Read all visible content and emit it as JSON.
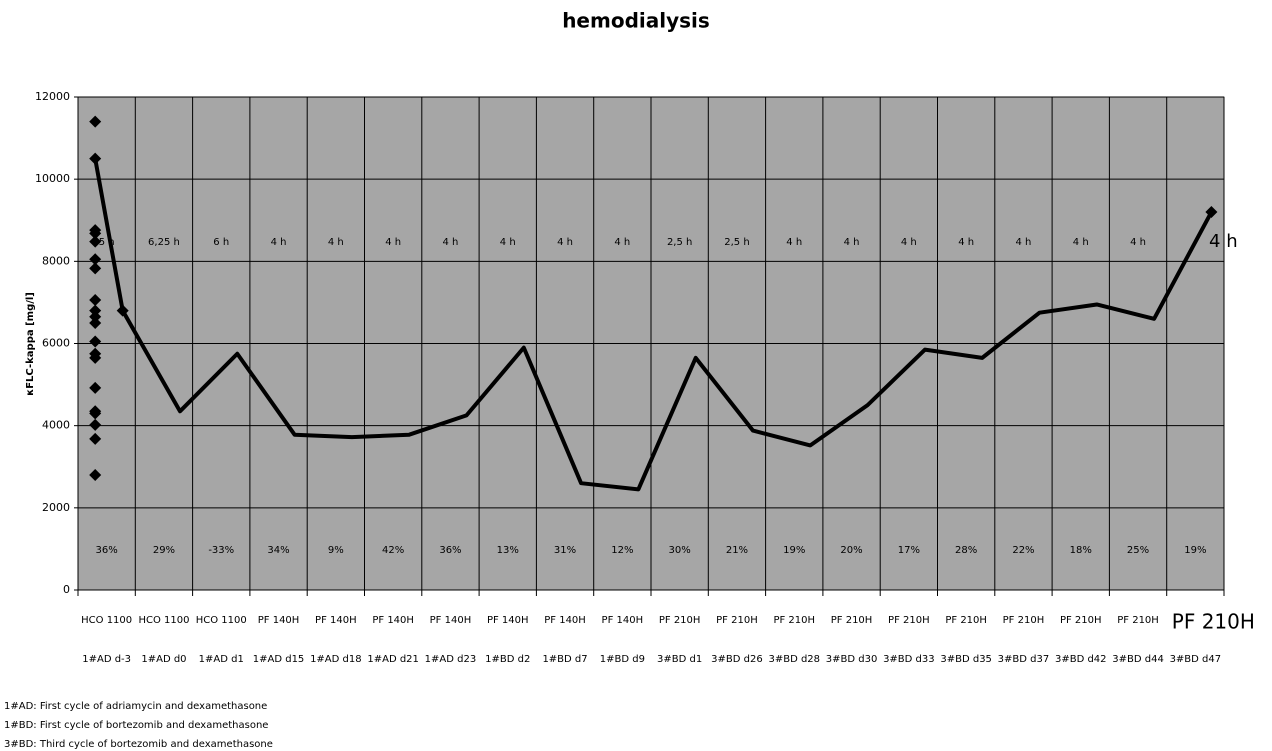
{
  "chart_data": {
    "type": "line",
    "title": "hemodialysis",
    "y_label": "κFLC-kappa [mg/l]",
    "categories": [
      "1#AD d-3",
      "1#AD d0",
      "1#AD d1",
      "1#AD d15",
      "1#AD d18",
      "1#AD d21",
      "1#AD d23",
      "1#BD d2",
      "1#BD d7",
      "1#BD d9",
      "3#BD d1",
      "3#BD d26",
      "3#BD d28",
      "3#BD d30",
      "3#BD d33",
      "3#BD d35",
      "3#BD d37",
      "3#BD d42",
      "3#BD d44",
      "3#BD d47"
    ],
    "dialyzers": [
      "HCO 1100",
      "HCO 1100",
      "HCO 1100",
      "PF 140H",
      "PF 140H",
      "PF 140H",
      "PF 140H",
      "PF 140H",
      "PF 140H",
      "PF 140H",
      "PF 210H",
      "PF 210H",
      "PF 210H",
      "PF 210H",
      "PF 210H",
      "PF 210H",
      "PF 210H",
      "PF 210H",
      "PF 210H",
      "PF 210H"
    ],
    "durations": [
      "5 h",
      "6,25 h",
      "6 h",
      "4 h",
      "4 h",
      "4 h",
      "4 h",
      "4 h",
      "4 h",
      "4 h",
      "2,5 h",
      "2,5 h",
      "4 h",
      "4 h",
      "4 h",
      "4 h",
      "4 h",
      "4 h",
      "4 h",
      "4 h"
    ],
    "reductions": [
      "36%",
      "29%",
      "-33%",
      "34%",
      "9%",
      "42%",
      "36%",
      "13%",
      "31%",
      "12%",
      "30%",
      "21%",
      "19%",
      "20%",
      "17%",
      "28%",
      "22%",
      "18%",
      "25%",
      "19%"
    ],
    "series": [
      {
        "color": "#000000",
        "values": [
          10500,
          6050,
          4350,
          5750,
          4020,
          6500,
          6650,
          6800,
          3680,
          2800,
          8050,
          4920,
          4300,
          5650,
          7060,
          7830,
          8680,
          8480,
          8760,
          11400
        ]
      },
      {
        "color": "#000000",
        "values": [
          6800,
          4350,
          5750,
          3780,
          3720,
          3780,
          4250,
          5900,
          2600,
          2450,
          5650,
          3880,
          3520,
          4500,
          5850,
          5650,
          6750,
          6950,
          6600,
          9200
        ]
      }
    ],
    "ylim": [
      0,
      12000
    ],
    "yticks": [
      0,
      2000,
      4000,
      6000,
      8000,
      10000,
      12000
    ],
    "grid": true,
    "notes": [
      "1#AD: First cycle of adriamycin and dexamethasone",
      "1#BD: First cycle of bortezomib and dexamethasone",
      "3#BD: Third cycle of bortezomib and dexamethasone"
    ]
  }
}
